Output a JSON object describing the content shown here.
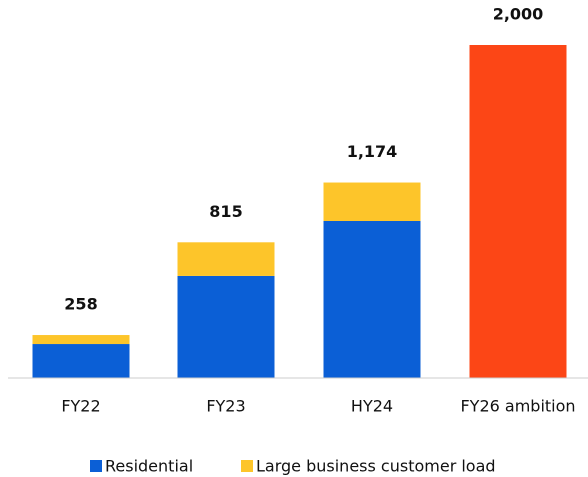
{
  "chart_data": {
    "type": "stacked_bar",
    "categories": [
      "FY22",
      "FY23",
      "HY24",
      "FY26 ambition"
    ],
    "series": [
      {
        "name": "Residential",
        "color": "#0b5fd6",
        "values": [
          204,
          613,
          943,
          null
        ]
      },
      {
        "name": "Large business customer load",
        "color": "#fdc52a",
        "values": [
          54,
          202,
          231,
          null
        ]
      },
      {
        "color": "#fc4616",
        "values": [
          null,
          null,
          null,
          2000
        ]
      }
    ],
    "totals": [
      258,
      815,
      1174,
      2000
    ],
    "value_labels": [
      "258",
      "815",
      "1,174",
      "2,000"
    ],
    "ylim": [
      0,
      2000
    ],
    "legend": "bottom"
  }
}
